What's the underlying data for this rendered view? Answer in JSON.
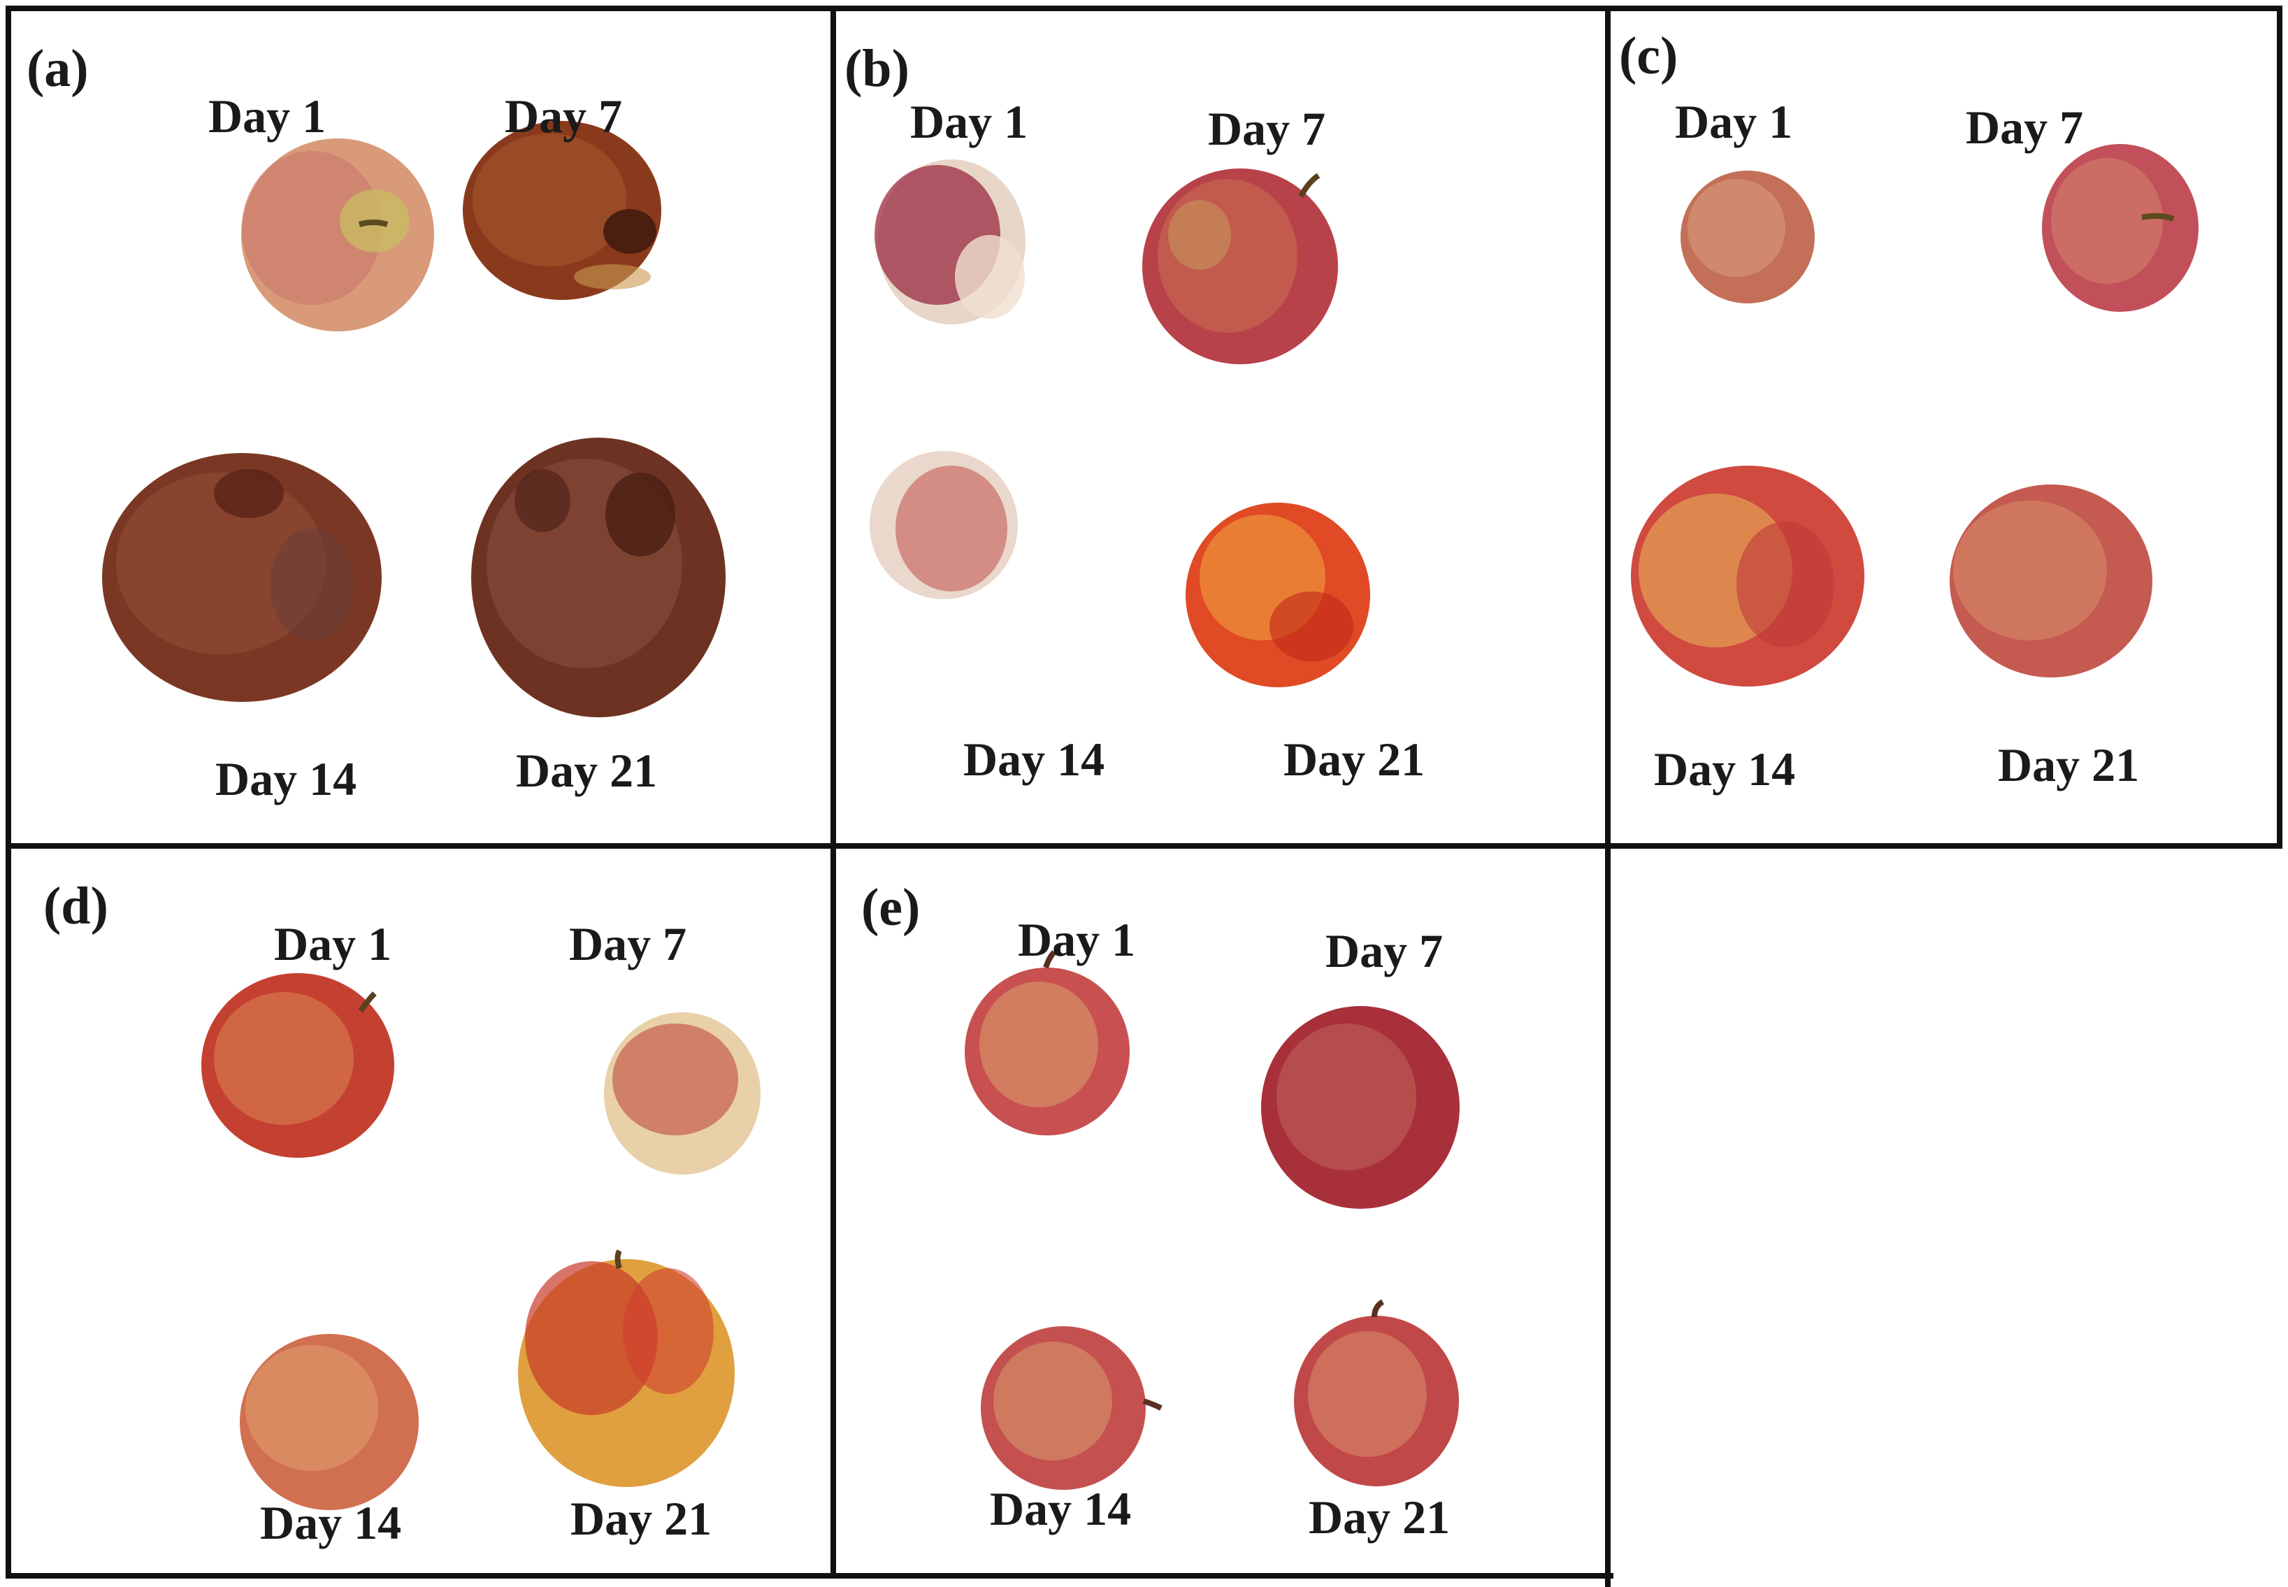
{
  "figure": {
    "panels": [
      {
        "id": "a",
        "label": "(a)",
        "days": [
          "Day 1",
          "Day 7",
          "Day 14",
          "Day 21"
        ]
      },
      {
        "id": "b",
        "label": "(b)",
        "days": [
          "Day 1",
          "Day 7",
          "Day 14",
          "Day 21"
        ]
      },
      {
        "id": "c",
        "label": "(c)",
        "days": [
          "Day 1",
          "Day 7",
          "Day 14",
          "Day 21"
        ]
      },
      {
        "id": "d",
        "label": "(d)",
        "days": [
          "Day 1",
          "Day 7",
          "Day 14",
          "Day 21"
        ]
      },
      {
        "id": "e",
        "label": "(e)",
        "days": [
          "Day 1",
          "Day 7",
          "Day 14",
          "Day 21"
        ]
      }
    ]
  },
  "colors": {
    "border": "#111111",
    "background": "#ffffff",
    "apple_red": "#b22a2a",
    "apple_dark": "#6e2a1c",
    "apple_yellow": "#e3b24a",
    "apple_blush": "#d9a07c"
  }
}
